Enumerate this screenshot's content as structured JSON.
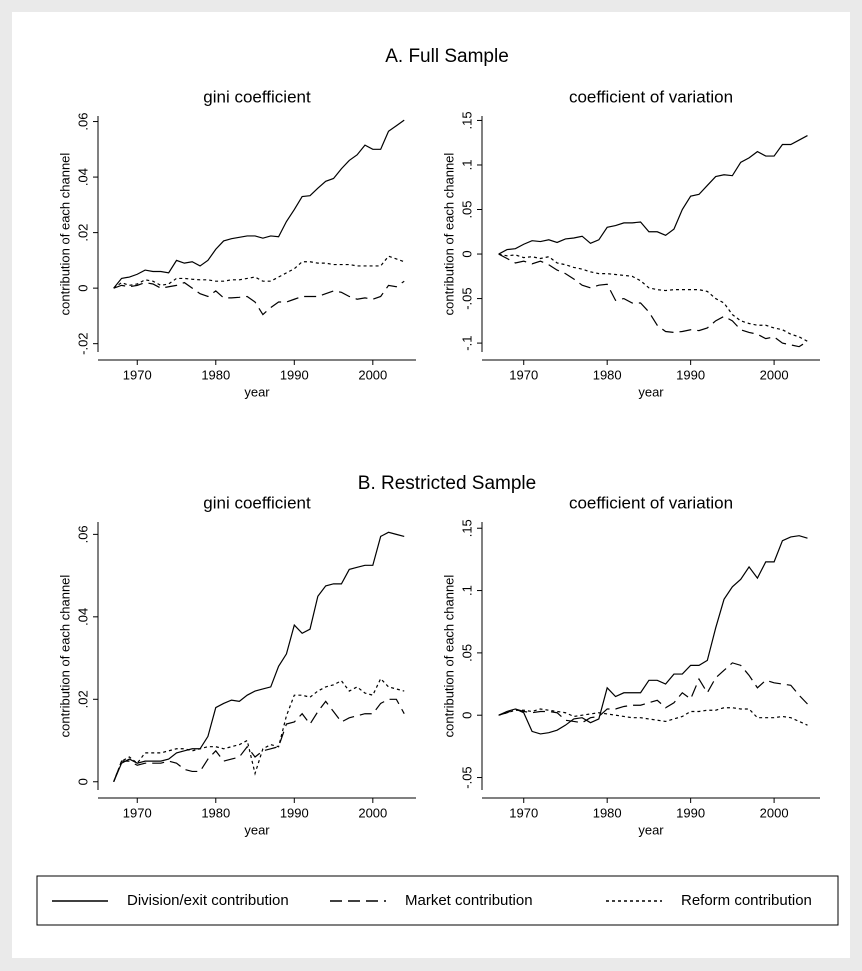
{
  "headings": [
    "A. Full Sample",
    "B. Restricted Sample"
  ],
  "chart_data": [
    {
      "type": "line",
      "title": "gini coefficient",
      "xlabel": "year",
      "ylabel": "contribution of each channel",
      "x": [
        1967,
        1968,
        1969,
        1970,
        1971,
        1972,
        1973,
        1974,
        1975,
        1976,
        1977,
        1978,
        1979,
        1980,
        1981,
        1982,
        1983,
        1984,
        1985,
        1986,
        1987,
        1988,
        1989,
        1990,
        1991,
        1992,
        1993,
        1994,
        1995,
        1996,
        1997,
        1998,
        1999,
        2000,
        2001,
        2002,
        2003,
        2004
      ],
      "xlim": [
        1965,
        2005.5
      ],
      "xticks": [
        1970,
        1980,
        1990,
        2000
      ],
      "ylim": [
        -0.023,
        0.062
      ],
      "yticks": [
        {
          "value": -0.02,
          "label": "-.02"
        },
        0,
        {
          "value": 0.02,
          "label": ".02"
        },
        {
          "value": 0.04,
          "label": ".04"
        },
        {
          "value": 0.06,
          "label": ".06"
        }
      ],
      "series": [
        {
          "name": "Division/exit contribution",
          "color": "#000000",
          "dash": "solid",
          "values": [
            0,
            0.0035,
            0.004,
            0.005,
            0.0065,
            0.006,
            0.006,
            0.0055,
            0.01,
            0.009,
            0.0095,
            0.008,
            0.01,
            0.014,
            0.017,
            0.0178,
            0.0183,
            0.0188,
            0.0188,
            0.018,
            0.0188,
            0.0185,
            0.024,
            0.0283,
            0.033,
            0.0333,
            0.036,
            0.0385,
            0.0395,
            0.043,
            0.046,
            0.048,
            0.0515,
            0.05,
            0.05,
            0.0565,
            0.0585,
            0.0605
          ]
        },
        {
          "name": "Market contribution",
          "color": "#000000",
          "dash": "long",
          "values": [
            0,
            0.001,
            0.0005,
            0.001,
            0.002,
            0.0015,
            0,
            0.0005,
            0.001,
            0.002,
            0,
            -0.002,
            -0.003,
            -0.001,
            -0.0035,
            -0.0035,
            -0.0033,
            -0.003,
            -0.005,
            -0.0095,
            -0.007,
            -0.005,
            -0.005,
            -0.004,
            -0.003,
            -0.003,
            -0.003,
            -0.002,
            -0.001,
            -0.0015,
            -0.003,
            -0.004,
            -0.0035,
            -0.004,
            -0.003,
            0.001,
            0.0005,
            0.0025
          ]
        },
        {
          "name": "Reform contribution",
          "color": "#000000",
          "dash": "dot",
          "values": [
            0,
            0.002,
            0.001,
            0.0015,
            0.003,
            0.0025,
            0.001,
            0.0015,
            0.0035,
            0.0035,
            0.0032,
            0.003,
            0.003,
            0.0025,
            0.0025,
            0.003,
            0.003,
            0.0035,
            0.004,
            0.0025,
            0.0025,
            0.004,
            0.0055,
            0.007,
            0.0095,
            0.0095,
            0.009,
            0.009,
            0.0085,
            0.0085,
            0.0085,
            0.008,
            0.008,
            0.008,
            0.008,
            0.0115,
            0.0105,
            0.0095
          ]
        }
      ]
    },
    {
      "type": "line",
      "title": "coefficient of variation",
      "xlabel": "year",
      "ylabel": "contribution of each channel",
      "x": [
        1967,
        1968,
        1969,
        1970,
        1971,
        1972,
        1973,
        1974,
        1975,
        1976,
        1977,
        1978,
        1979,
        1980,
        1981,
        1982,
        1983,
        1984,
        1985,
        1986,
        1987,
        1988,
        1989,
        1990,
        1991,
        1992,
        1993,
        1994,
        1995,
        1996,
        1997,
        1998,
        1999,
        2000,
        2001,
        2002,
        2003,
        2004
      ],
      "xlim": [
        1965,
        2005.5
      ],
      "xticks": [
        1970,
        1980,
        1990,
        2000
      ],
      "ylim": [
        -0.11,
        0.155
      ],
      "yticks": [
        {
          "value": -0.1,
          "label": "-.1"
        },
        {
          "value": -0.05,
          "label": "-.05"
        },
        0,
        {
          "value": 0.05,
          "label": ".05"
        },
        {
          "value": 0.1,
          "label": ".1"
        },
        {
          "value": 0.15,
          "label": ".15"
        }
      ],
      "series": [
        {
          "name": "Division/exit contribution",
          "color": "#000000",
          "dash": "solid",
          "values": [
            0,
            0.005,
            0.006,
            0.011,
            0.015,
            0.014,
            0.016,
            0.013,
            0.017,
            0.018,
            0.02,
            0.012,
            0.016,
            0.03,
            0.032,
            0.035,
            0.035,
            0.036,
            0.025,
            0.025,
            0.021,
            0.028,
            0.05,
            0.065,
            0.067,
            0.077,
            0.087,
            0.089,
            0.088,
            0.103,
            0.108,
            0.115,
            0.11,
            0.11,
            0.123,
            0.123,
            0.128,
            0.133
          ]
        },
        {
          "name": "Market contribution",
          "color": "#000000",
          "dash": "long",
          "values": [
            0,
            -0.005,
            -0.01,
            -0.008,
            -0.011,
            -0.008,
            -0.012,
            -0.018,
            -0.022,
            -0.028,
            -0.035,
            -0.038,
            -0.035,
            -0.034,
            -0.052,
            -0.05,
            -0.055,
            -0.055,
            -0.065,
            -0.08,
            -0.087,
            -0.088,
            -0.087,
            -0.085,
            -0.086,
            -0.083,
            -0.075,
            -0.07,
            -0.075,
            -0.085,
            -0.088,
            -0.09,
            -0.095,
            -0.093,
            -0.1,
            -0.102,
            -0.104,
            -0.098
          ]
        },
        {
          "name": "Reform contribution",
          "color": "#000000",
          "dash": "dot",
          "values": [
            0,
            -0.002,
            -0.001,
            -0.004,
            -0.003,
            -0.005,
            -0.003,
            -0.01,
            -0.012,
            -0.015,
            -0.017,
            -0.02,
            -0.022,
            -0.022,
            -0.023,
            -0.024,
            -0.025,
            -0.03,
            -0.038,
            -0.04,
            -0.041,
            -0.04,
            -0.04,
            -0.04,
            -0.04,
            -0.042,
            -0.05,
            -0.055,
            -0.068,
            -0.075,
            -0.078,
            -0.08,
            -0.08,
            -0.083,
            -0.085,
            -0.09,
            -0.093,
            -0.098
          ]
        }
      ]
    },
    {
      "type": "line",
      "title": "gini coefficient",
      "xlabel": "year",
      "ylabel": "contribution of each channel",
      "x": [
        1967,
        1968,
        1969,
        1970,
        1971,
        1972,
        1973,
        1974,
        1975,
        1976,
        1977,
        1978,
        1979,
        1980,
        1981,
        1982,
        1983,
        1984,
        1985,
        1986,
        1987,
        1988,
        1989,
        1990,
        1991,
        1992,
        1993,
        1994,
        1995,
        1996,
        1997,
        1998,
        1999,
        2000,
        2001,
        2002,
        2003,
        2004
      ],
      "xlim": [
        1965,
        2005.5
      ],
      "xticks": [
        1970,
        1980,
        1990,
        2000
      ],
      "ylim": [
        -0.002,
        0.063
      ],
      "yticks": [
        0,
        {
          "value": 0.02,
          "label": ".02"
        },
        {
          "value": 0.04,
          "label": ".04"
        },
        {
          "value": 0.06,
          "label": ".06"
        }
      ],
      "series": [
        {
          "name": "Division/exit contribution",
          "color": "#000000",
          "dash": "solid",
          "values": [
            0,
            0.0045,
            0.0055,
            0.0045,
            0.005,
            0.005,
            0.005,
            0.0055,
            0.007,
            0.0075,
            0.008,
            0.008,
            0.011,
            0.018,
            0.019,
            0.0198,
            0.0195,
            0.021,
            0.022,
            0.0225,
            0.023,
            0.028,
            0.031,
            0.038,
            0.036,
            0.037,
            0.045,
            0.0475,
            0.048,
            0.048,
            0.0515,
            0.052,
            0.0525,
            0.0525,
            0.0595,
            0.0605,
            0.06,
            0.0595
          ]
        },
        {
          "name": "Market contribution",
          "color": "#000000",
          "dash": "long",
          "values": [
            0,
            0.005,
            0.005,
            0.004,
            0.0045,
            0.0045,
            0.0045,
            0.005,
            0.0045,
            0.003,
            0.0025,
            0.0025,
            0.0055,
            0.0075,
            0.005,
            0.0055,
            0.006,
            0.0085,
            0.006,
            0.0075,
            0.008,
            0.0085,
            0.014,
            0.0145,
            0.0165,
            0.014,
            0.017,
            0.0195,
            0.017,
            0.0145,
            0.0155,
            0.016,
            0.0165,
            0.0165,
            0.019,
            0.02,
            0.02,
            0.0165
          ]
        },
        {
          "name": "Reform contribution",
          "color": "#000000",
          "dash": "dot",
          "values": [
            0,
            0.005,
            0.006,
            0.0045,
            0.007,
            0.007,
            0.007,
            0.0075,
            0.008,
            0.008,
            0.0075,
            0.008,
            0.0085,
            0.0085,
            0.008,
            0.0085,
            0.009,
            0.01,
            0.002,
            0.008,
            0.009,
            0.0085,
            0.016,
            0.021,
            0.021,
            0.0205,
            0.022,
            0.023,
            0.0235,
            0.0245,
            0.022,
            0.023,
            0.0215,
            0.021,
            0.025,
            0.023,
            0.0225,
            0.022
          ]
        }
      ]
    },
    {
      "type": "line",
      "title": "coefficient of variation",
      "xlabel": "year",
      "ylabel": "contribution of each channel",
      "x": [
        1967,
        1968,
        1969,
        1970,
        1971,
        1972,
        1973,
        1974,
        1975,
        1976,
        1977,
        1978,
        1979,
        1980,
        1981,
        1982,
        1983,
        1984,
        1985,
        1986,
        1987,
        1988,
        1989,
        1990,
        1991,
        1992,
        1993,
        1994,
        1995,
        1996,
        1997,
        1998,
        1999,
        2000,
        2001,
        2002,
        2003,
        2004
      ],
      "xlim": [
        1965,
        2005.5
      ],
      "xticks": [
        1970,
        1980,
        1990,
        2000
      ],
      "ylim": [
        -0.06,
        0.155
      ],
      "yticks": [
        {
          "value": -0.05,
          "label": "-.05"
        },
        0,
        {
          "value": 0.05,
          "label": ".05"
        },
        {
          "value": 0.1,
          "label": ".1"
        },
        {
          "value": 0.15,
          "label": ".15"
        }
      ],
      "series": [
        {
          "name": "Division/exit contribution",
          "color": "#000000",
          "dash": "solid",
          "values": [
            0,
            0.003,
            0.005,
            0.002,
            -0.013,
            -0.015,
            -0.014,
            -0.012,
            -0.008,
            -0.003,
            -0.002,
            -0.006,
            -0.003,
            0.022,
            0.015,
            0.018,
            0.018,
            0.018,
            0.028,
            0.028,
            0.025,
            0.033,
            0.033,
            0.04,
            0.04,
            0.044,
            0.07,
            0.093,
            0.103,
            0.109,
            0.119,
            0.11,
            0.123,
            0.123,
            0.14,
            0.143,
            0.144,
            0.142
          ]
        },
        {
          "name": "Market contribution",
          "color": "#000000",
          "dash": "long",
          "values": [
            0,
            0.002,
            0.005,
            0.003,
            0.002,
            0.003,
            0.003,
            0.002,
            -0.004,
            -0.005,
            -0.006,
            -0.002,
            -0.001,
            0.005,
            0.005,
            0.007,
            0.008,
            0.008,
            0.01,
            0.012,
            0.006,
            0.01,
            0.018,
            0.013,
            0.029,
            0.018,
            0.03,
            0.036,
            0.042,
            0.04,
            0.032,
            0.022,
            0.028,
            0.026,
            0.025,
            0.024,
            0.016,
            0.009
          ]
        },
        {
          "name": "Reform contribution",
          "color": "#000000",
          "dash": "dot",
          "values": [
            0,
            0.002,
            0.004,
            0.004,
            0.003,
            0.005,
            0.004,
            0.003,
            0.002,
            -0.001,
            0,
            0.001,
            0.002,
            0.001,
            0,
            -0.001,
            -0.002,
            -0.002,
            -0.003,
            -0.004,
            -0.005,
            -0.003,
            -0.001,
            0.003,
            0.003,
            0.004,
            0.004,
            0.006,
            0.006,
            0.005,
            0.005,
            -0.002,
            -0.002,
            -0.002,
            -0.001,
            -0.002,
            -0.005,
            -0.008
          ]
        }
      ]
    }
  ]
}
